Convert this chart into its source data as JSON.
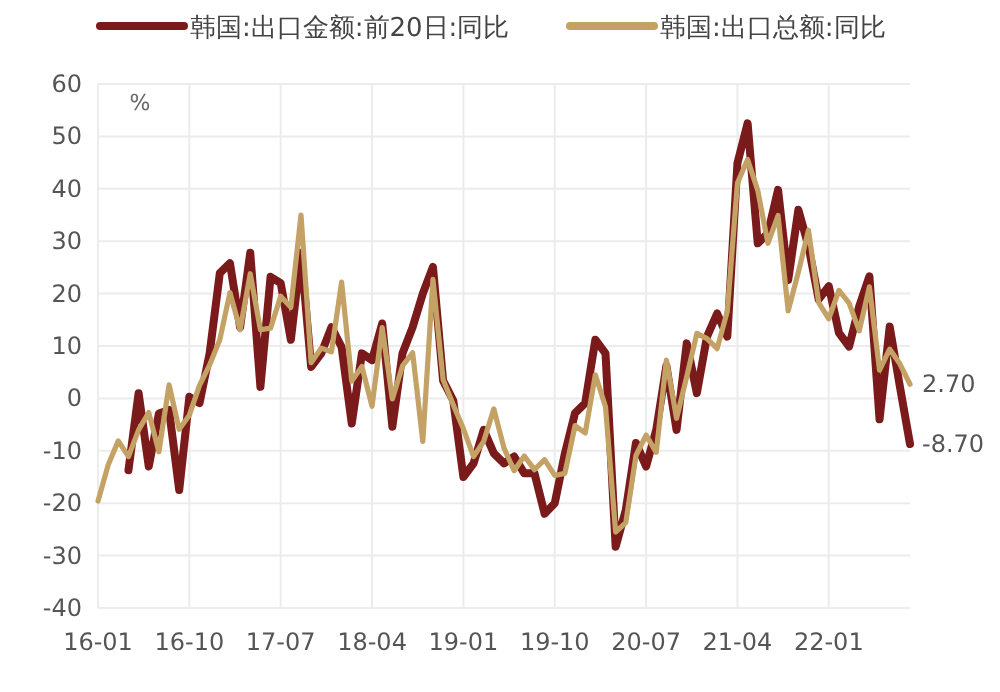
{
  "chart_data": {
    "type": "line",
    "ylabel": "%",
    "categories": [
      "16-01",
      null,
      null,
      null,
      null,
      null,
      null,
      null,
      null,
      "16-10",
      null,
      null,
      null,
      null,
      null,
      null,
      null,
      null,
      "17-07",
      null,
      null,
      null,
      null,
      null,
      null,
      null,
      null,
      "18-04",
      null,
      null,
      null,
      null,
      null,
      null,
      null,
      null,
      "19-01",
      null,
      null,
      null,
      null,
      null,
      null,
      null,
      null,
      "19-10",
      null,
      null,
      null,
      null,
      null,
      null,
      null,
      null,
      "20-07",
      null,
      null,
      null,
      null,
      null,
      null,
      null,
      null,
      "21-04",
      null,
      null,
      null,
      null,
      null,
      null,
      null,
      null,
      "22-01",
      null,
      null,
      null,
      null,
      null,
      null,
      null,
      null
    ],
    "series": [
      {
        "name": "韩国:出口金额:前20日:同比",
        "color": "#7b1a1a",
        "values": [
          null,
          null,
          null,
          -13.7,
          1,
          -13,
          -2.9,
          -2.2,
          -17.5,
          0.3,
          -0.9,
          8.6,
          23.9,
          25.8,
          13.6,
          27.8,
          2.2,
          23.2,
          22,
          11.2,
          27.8,
          6,
          8.6,
          13.6,
          9.8,
          -4.8,
          8.6,
          7.3,
          14.3,
          -5.4,
          8.6,
          13.6,
          20,
          25.1,
          3.4,
          -0.4,
          -15,
          -12.4,
          -6,
          -10.5,
          -12.4,
          -11.1,
          -14.3,
          -14.3,
          -22,
          -20,
          -10.5,
          -2.8,
          -0.9,
          11.2,
          8.6,
          -28.3,
          -21.3,
          -8.5,
          -13,
          -6,
          6.2,
          -6,
          10.5,
          1,
          11.8,
          16.2,
          11.8,
          44.9,
          52.5,
          29.6,
          31.5,
          39.8,
          22.6,
          36,
          29,
          18.9,
          21.4,
          12.5,
          9.9,
          17.6,
          23.3,
          -4,
          13.7,
          2.3,
          -8.7
        ],
        "value_labels": [
          null,
          null,
          null,
          null,
          null,
          null,
          null,
          null,
          null,
          null,
          null,
          null,
          null,
          null,
          null,
          null,
          null,
          null,
          null,
          null,
          null,
          null,
          null,
          null,
          null,
          null,
          null,
          null,
          null,
          null,
          null,
          null,
          null,
          null,
          null,
          null,
          null,
          null,
          null,
          null,
          null,
          null,
          null,
          null,
          null,
          null,
          null,
          null,
          null,
          null,
          null,
          null,
          null,
          null,
          null,
          null,
          null,
          null,
          null,
          null,
          null,
          null,
          null,
          null,
          null,
          null,
          null,
          null,
          null,
          null,
          null,
          null,
          null,
          null,
          null,
          null,
          null,
          null,
          null,
          null,
          "-8.70"
        ]
      },
      {
        "name": "韩国:出口总额:同比",
        "color": "#c4a265",
        "values": [
          -19.6,
          -12.7,
          -8.1,
          -11.1,
          -6.0,
          -2.7,
          -10.2,
          2.6,
          -5.9,
          -3.2,
          2.5,
          6.4,
          11.2,
          20.2,
          13.1,
          23.8,
          13.1,
          13.4,
          19.5,
          17.4,
          35.0,
          6.8,
          9.6,
          8.9,
          22.2,
          3.3,
          6.1,
          -1.5,
          13.5,
          -0.1,
          6.2,
          8.7,
          -8.2,
          22.7,
          3.6,
          -1.2,
          -5.8,
          -11.1,
          -8.2,
          -2.0,
          -9.5,
          -13.8,
          -11.0,
          -13.6,
          -11.7,
          -14.7,
          -14.3,
          -5.2,
          -6.6,
          4.5,
          -1.6,
          -25.5,
          -23.7,
          -10.9,
          -7.0,
          -10.3,
          7.3,
          -3.8,
          4.1,
          12.4,
          11.4,
          9.5,
          16.6,
          41.1,
          45.6,
          39.7,
          29.6,
          34.9,
          16.7,
          24.1,
          32.1,
          18.3,
          15.2,
          20.6,
          18.2,
          12.9,
          21.3,
          5.4,
          9.4,
          6.6,
          2.7
        ],
        "value_labels": [
          null,
          null,
          null,
          null,
          null,
          null,
          null,
          null,
          null,
          null,
          null,
          null,
          null,
          null,
          null,
          null,
          null,
          null,
          null,
          null,
          null,
          null,
          null,
          null,
          null,
          null,
          null,
          null,
          null,
          null,
          null,
          null,
          null,
          null,
          null,
          null,
          null,
          null,
          null,
          null,
          null,
          null,
          null,
          null,
          null,
          null,
          null,
          null,
          null,
          null,
          null,
          null,
          null,
          null,
          null,
          null,
          null,
          null,
          null,
          null,
          null,
          null,
          null,
          null,
          null,
          null,
          null,
          null,
          null,
          null,
          null,
          null,
          null,
          null,
          null,
          null,
          null,
          null,
          null,
          null,
          "2.70"
        ]
      }
    ],
    "ylim": [
      -40,
      60
    ],
    "yticks": [
      -40,
      -30,
      -20,
      -10,
      0,
      10,
      20,
      30,
      40,
      50,
      60
    ],
    "grid": true,
    "legend": "top",
    "marker": "none",
    "line_style": "solid"
  }
}
